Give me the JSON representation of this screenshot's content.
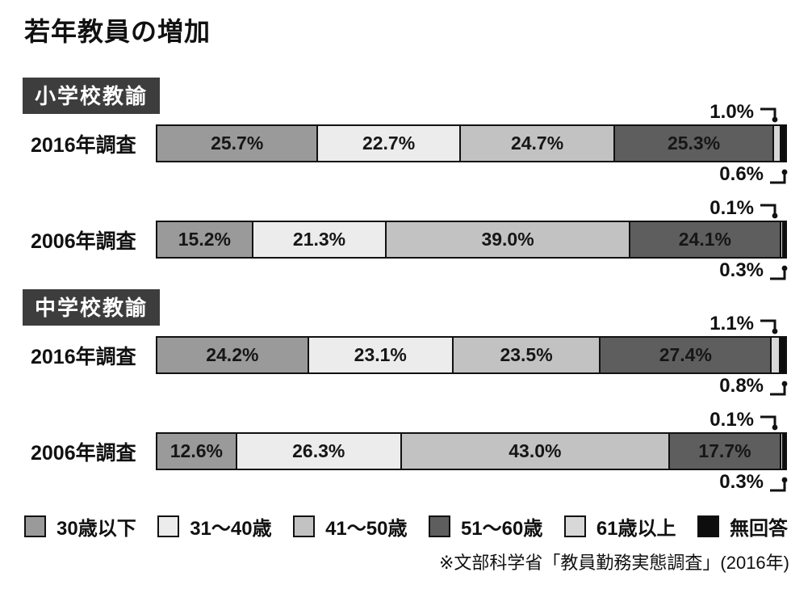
{
  "title": "若年教員の増加",
  "source": "※文部科学省「教員勤務実態調査」(2016年)",
  "legend": {
    "items": [
      {
        "label": "30歳以下",
        "color": "#9a9a9a"
      },
      {
        "label": "31〜40歳",
        "color": "#ececec"
      },
      {
        "label": "41〜50歳",
        "color": "#c2c2c2"
      },
      {
        "label": "51〜60歳",
        "color": "#5e5e5e"
      },
      {
        "label": "61歳以上",
        "color": "#d8d8d8"
      },
      {
        "label": "無回答",
        "color": "#0d0d0d"
      }
    ]
  },
  "chart_data": {
    "type": "bar",
    "variant": "horizontal-stacked",
    "unit": "%",
    "xlim": [
      0,
      100
    ],
    "grid": false,
    "legend_position": "bottom",
    "categories": [
      "30歳以下",
      "31〜40歳",
      "41〜50歳",
      "51〜60歳",
      "61歳以上",
      "無回答"
    ],
    "groups": [
      {
        "title": "小学校教諭",
        "rows": [
          {
            "label": "2016年調査",
            "values": [
              25.7,
              22.7,
              24.7,
              25.3,
              1.0,
              0.6
            ],
            "value_labels": [
              "25.7%",
              "22.7%",
              "24.7%",
              "25.3%",
              null,
              null
            ],
            "callouts": {
              "top": "1.0%",
              "top_target": "61歳以上",
              "bottom": "0.6%",
              "bottom_target": "無回答"
            }
          },
          {
            "label": "2006年調査",
            "values": [
              15.2,
              21.3,
              39.0,
              24.1,
              0.1,
              0.3
            ],
            "value_labels": [
              "15.2%",
              "21.3%",
              "39.0%",
              "24.1%",
              null,
              null
            ],
            "callouts": {
              "top": "0.1%",
              "top_target": "61歳以上",
              "bottom": "0.3%",
              "bottom_target": "無回答"
            }
          }
        ]
      },
      {
        "title": "中学校教諭",
        "rows": [
          {
            "label": "2016年調査",
            "values": [
              24.2,
              23.1,
              23.5,
              27.4,
              1.1,
              0.8
            ],
            "value_labels": [
              "24.2%",
              "23.1%",
              "23.5%",
              "27.4%",
              null,
              null
            ],
            "callouts": {
              "top": "1.1%",
              "top_target": "61歳以上",
              "bottom": "0.8%",
              "bottom_target": "無回答"
            }
          },
          {
            "label": "2006年調査",
            "values": [
              12.6,
              26.3,
              43.0,
              17.7,
              0.1,
              0.3
            ],
            "value_labels": [
              "12.6%",
              "26.3%",
              "43.0%",
              "17.7%",
              null,
              null
            ],
            "callouts": {
              "top": "0.1%",
              "top_target": "61歳以上",
              "bottom": "0.3%",
              "bottom_target": "無回答"
            }
          }
        ]
      }
    ]
  }
}
